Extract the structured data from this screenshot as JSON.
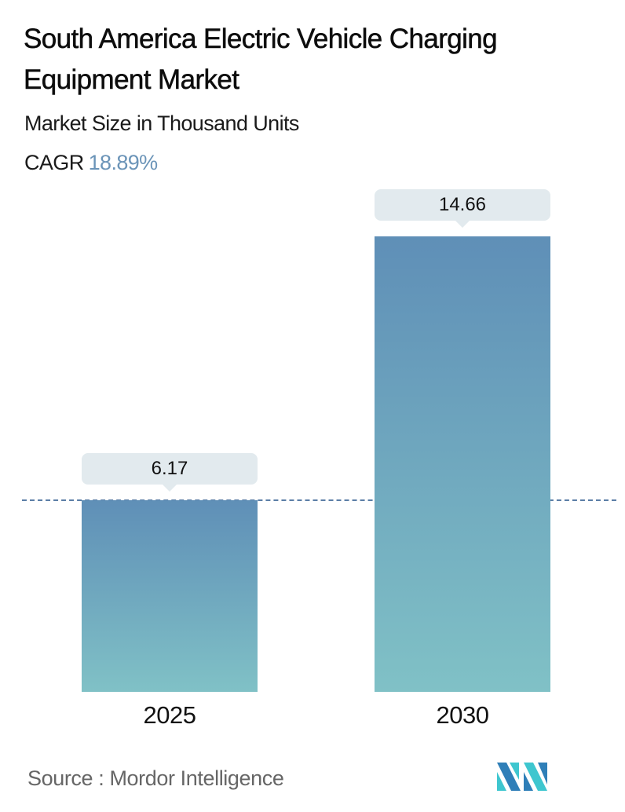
{
  "header": {
    "title": "South America Electric Vehicle Charging Equipment Market",
    "subtitle": "Market Size in Thousand Units",
    "cagr_label": "CAGR",
    "cagr_value": "18.89%"
  },
  "bars": [
    {
      "year": "2025",
      "value_label": "6.17"
    },
    {
      "year": "2030",
      "value_label": "14.66"
    }
  ],
  "footer": {
    "source": "Source :  Mordor Intelligence",
    "logo": "mordor-intelligence-logo"
  },
  "colors": {
    "bar_top": "#5f8fb7",
    "bar_bottom": "#80c1c6",
    "callout_bg": "#e2eaee",
    "cagr_value": "#6b94b8",
    "dashed_line": "#5b7ea6",
    "logo_dark": "#2f7fb8",
    "logo_light": "#3ec6cf"
  },
  "chart_data": {
    "type": "bar",
    "title": "South America Electric Vehicle Charging Equipment Market",
    "subtitle": "Market Size in Thousand Units",
    "annotation": "CAGR 18.89%",
    "categories": [
      "2025",
      "2030"
    ],
    "values": [
      6.17,
      14.66
    ],
    "xlabel": "",
    "ylabel": "Market Size in Thousand Units",
    "ylim": [
      0,
      14.66
    ],
    "grid": false,
    "legend": null,
    "reference_line": {
      "style": "dashed",
      "at_value": 6.17
    },
    "source": "Mordor Intelligence"
  }
}
